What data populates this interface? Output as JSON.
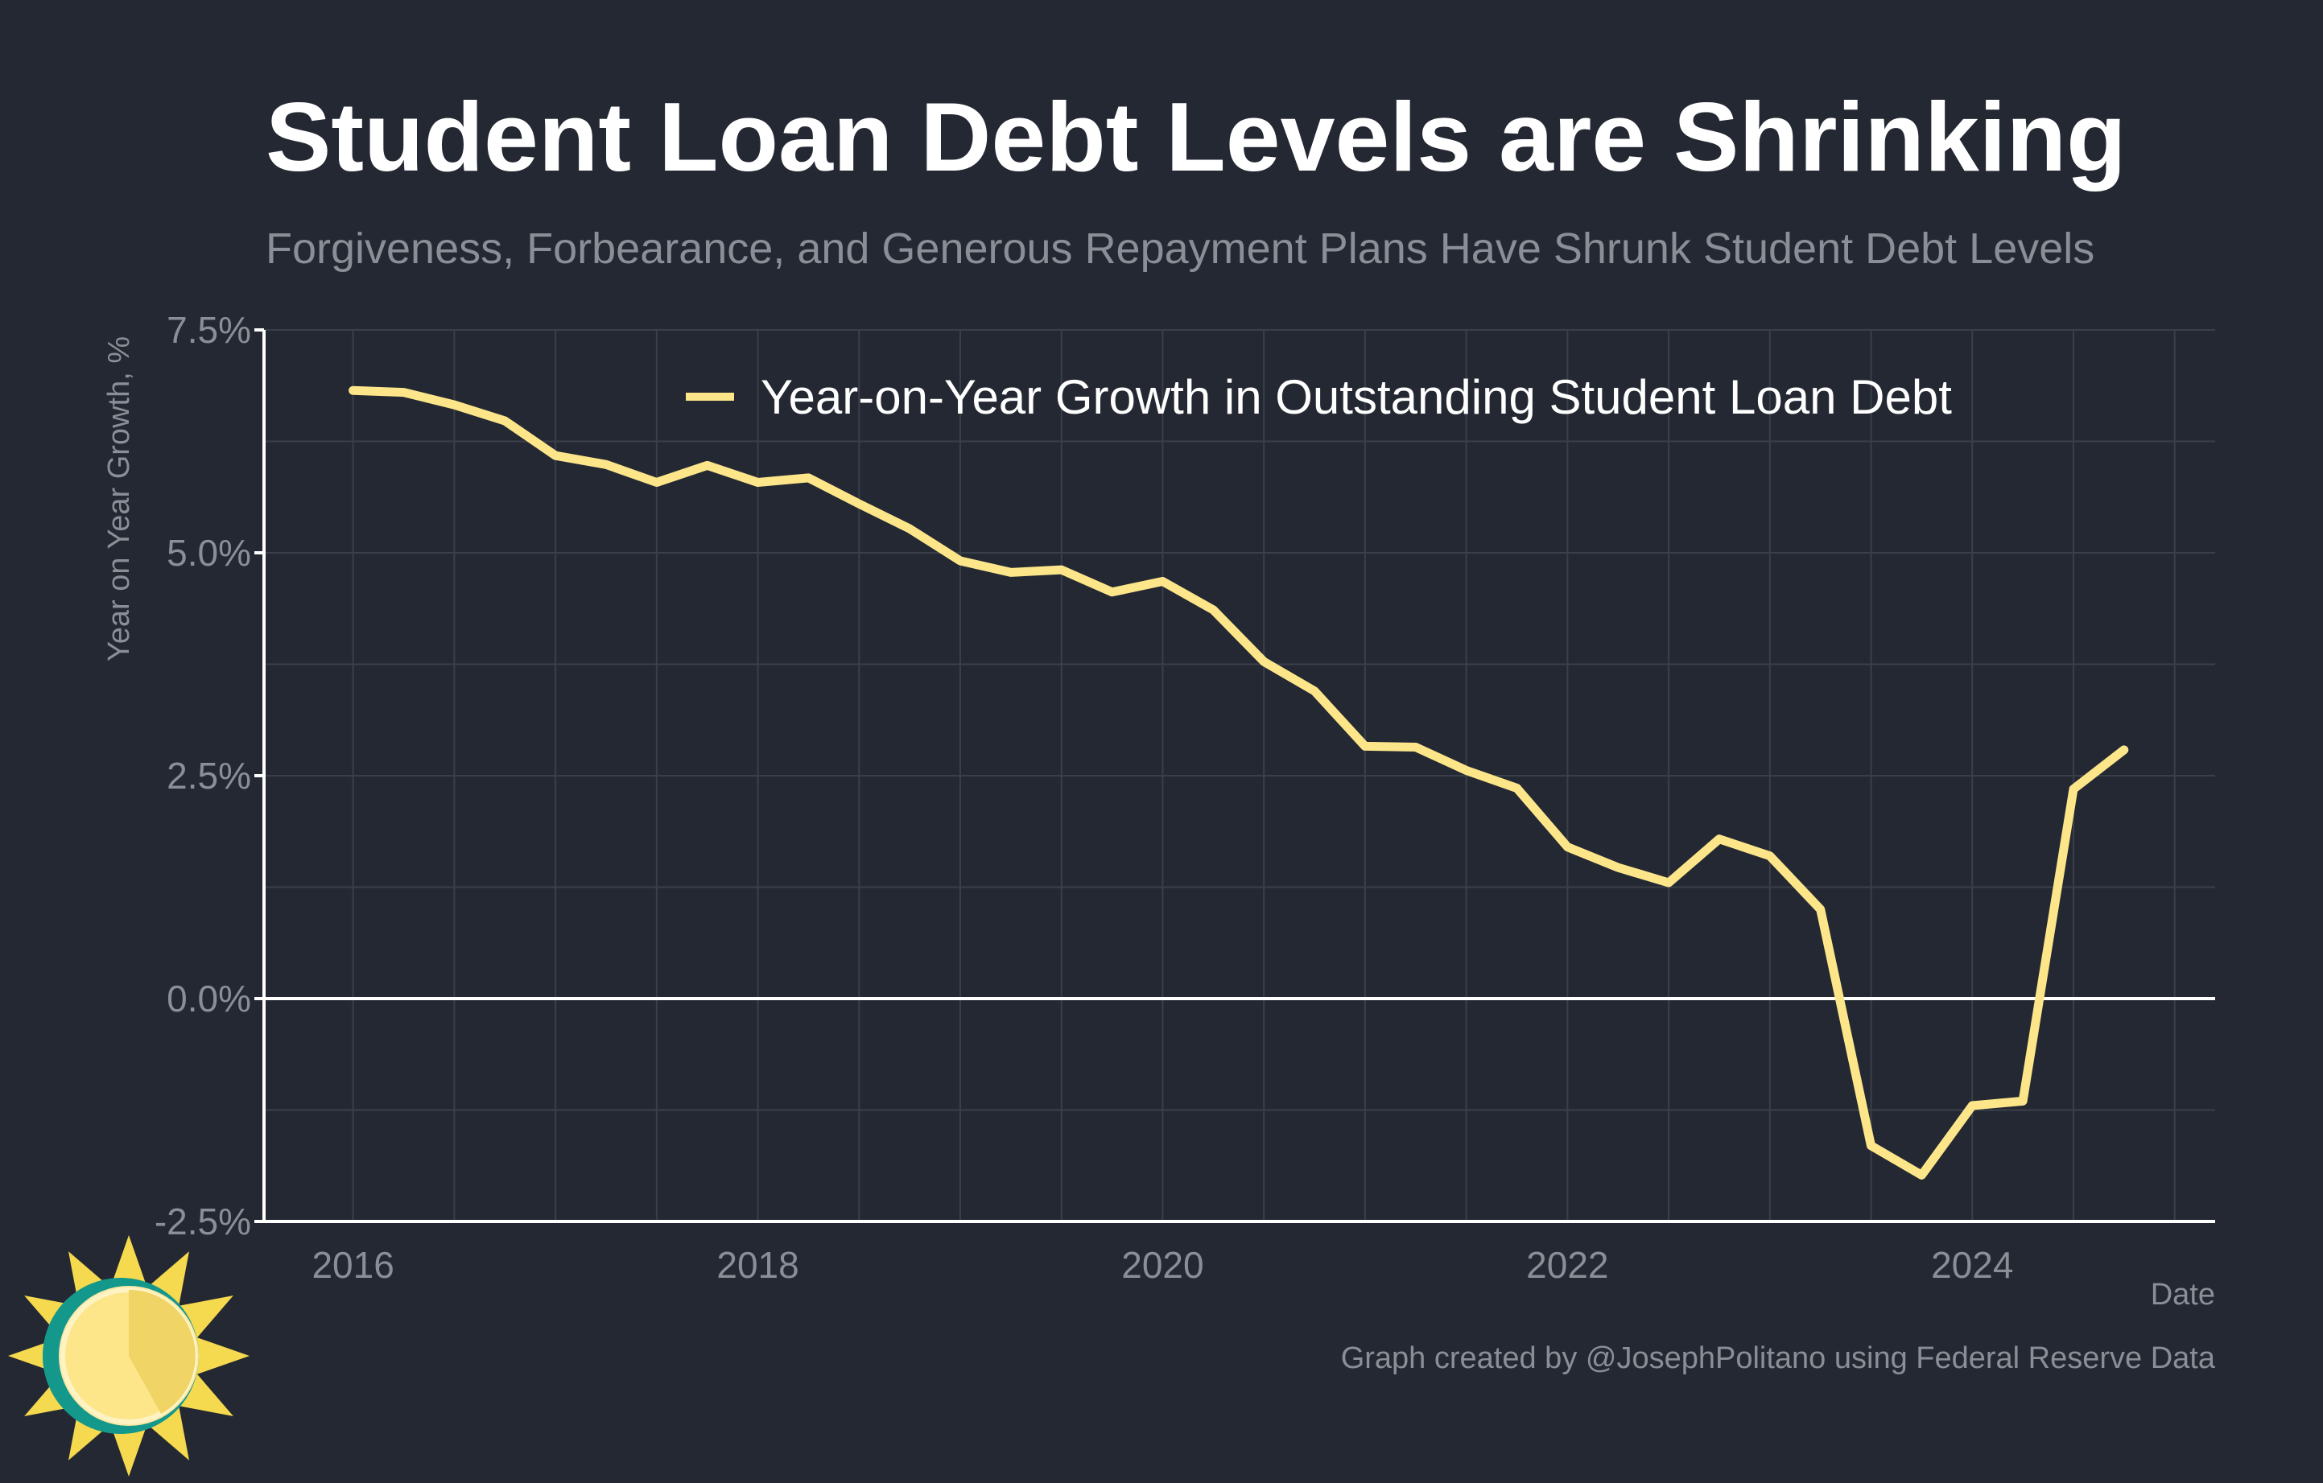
{
  "chart_data": {
    "type": "line",
    "title": "Student Loan Debt Levels are Shrinking",
    "subtitle": "Forgiveness, Forbearance, and Generous Repayment Plans Have Shrunk Student Debt Levels",
    "xlabel": "Date",
    "ylabel": "Year on Year Growth, %",
    "xlim": [
      2015.56,
      2025.2
    ],
    "ylim": [
      -2.5,
      7.5
    ],
    "y_ticks": [
      -2.5,
      0.0,
      2.5,
      5.0,
      7.5
    ],
    "y_tick_labels": [
      "-2.5%",
      "0.0%",
      "2.5%",
      "5.0%",
      "7.5%"
    ],
    "x_ticks": [
      2016,
      2018,
      2020,
      2022,
      2024
    ],
    "x_tick_labels": [
      "2016",
      "2018",
      "2020",
      "2022",
      "2024"
    ],
    "grid": true,
    "legend_position": "top-center",
    "colors": {
      "background": "#242832",
      "line": "#fde68a",
      "zero_line": "#ffffff",
      "grid": "#3a3f49",
      "axis": "#ffffff"
    },
    "series": [
      {
        "name": "Year-on-Year Growth in Outstanding Student Loan Debt",
        "x": [
          2016.0,
          2016.25,
          2016.5,
          2016.75,
          2017.0,
          2017.25,
          2017.5,
          2017.75,
          2018.0,
          2018.25,
          2018.5,
          2018.75,
          2019.0,
          2019.25,
          2019.5,
          2019.75,
          2020.0,
          2020.25,
          2020.5,
          2020.75,
          2021.0,
          2021.25,
          2021.5,
          2021.75,
          2022.0,
          2022.25,
          2022.5,
          2022.75,
          2023.0,
          2023.25,
          2023.5,
          2023.75,
          2024.0,
          2024.25,
          2024.5,
          2024.75
        ],
        "y": [
          6.82,
          6.8,
          6.66,
          6.48,
          6.09,
          5.99,
          5.79,
          5.98,
          5.79,
          5.84,
          5.55,
          5.27,
          4.91,
          4.78,
          4.81,
          4.56,
          4.68,
          4.36,
          3.78,
          3.45,
          2.83,
          2.82,
          2.56,
          2.36,
          1.7,
          1.47,
          1.3,
          1.79,
          1.6,
          1.0,
          -1.65,
          -1.98,
          -1.2,
          -1.15,
          2.35,
          2.79
        ]
      }
    ],
    "credit": "Graph created by @JosephPolitano using Federal Reserve Data"
  }
}
